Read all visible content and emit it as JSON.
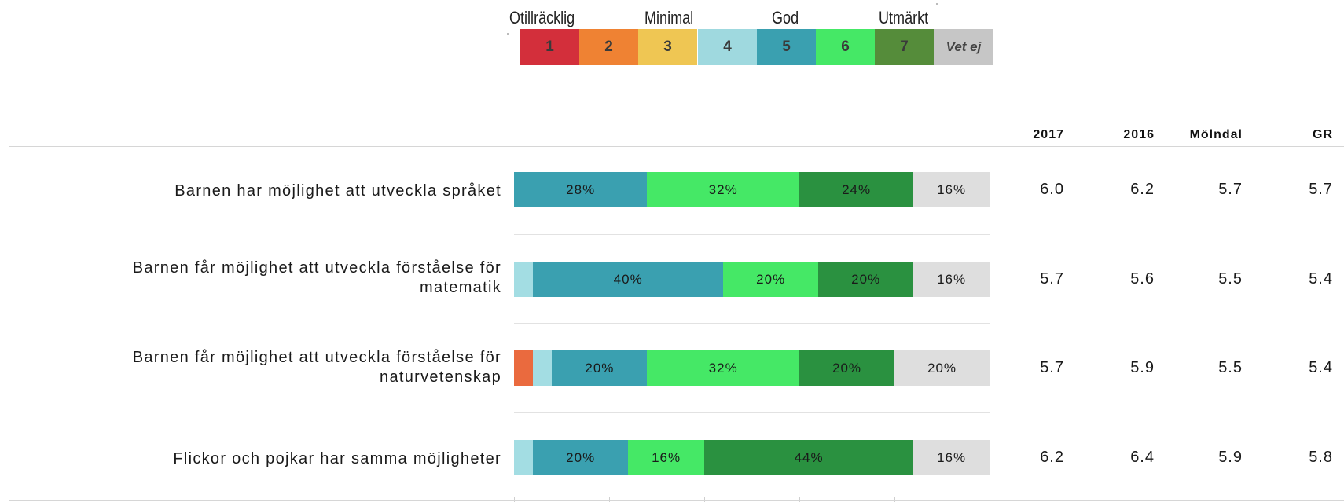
{
  "legend": {
    "top_labels": [
      "Otillräcklig",
      "Minimal",
      "God",
      "Utmärkt"
    ],
    "cells": [
      {
        "label": "1",
        "color": "#d32f3b"
      },
      {
        "label": "2",
        "color": "#ef8233"
      },
      {
        "label": "3",
        "color": "#efc653"
      },
      {
        "label": "4",
        "color": "#9fd9df"
      },
      {
        "label": "5",
        "color": "#3aa0b0"
      },
      {
        "label": "6",
        "color": "#45e866"
      },
      {
        "label": "7",
        "color": "#558c3a"
      },
      {
        "label": "Vet ej",
        "color": "#c6c6c6"
      }
    ]
  },
  "columns": [
    "2017",
    "2016",
    "Mölndal",
    "GR"
  ],
  "chart_data": {
    "type": "bar",
    "stacked": true,
    "orientation": "horizontal",
    "unit": "%",
    "categories": [
      "Barnen har möjlighet att utveckla språket",
      "Barnen får möjlighet att utveckla förståelse för matematik",
      "Barnen får möjlighet att utveckla förståelse för naturvetenskap",
      "Flickor och pojkar har samma möjligheter"
    ],
    "series": [
      {
        "name": "1",
        "color": "#d32f3b",
        "values": [
          0,
          0,
          0,
          0
        ]
      },
      {
        "name": "2",
        "color": "#ea6a3e",
        "values": [
          0,
          0,
          4,
          0
        ]
      },
      {
        "name": "3",
        "color": "#efc653",
        "values": [
          0,
          0,
          0,
          0
        ]
      },
      {
        "name": "4",
        "color": "#a3dde3",
        "values": [
          0,
          4,
          4,
          4
        ]
      },
      {
        "name": "5",
        "color": "#3aa0b0",
        "values": [
          28,
          40,
          20,
          20
        ]
      },
      {
        "name": "6",
        "color": "#45e866",
        "values": [
          32,
          20,
          32,
          16
        ]
      },
      {
        "name": "7",
        "color": "#2a9140",
        "values": [
          24,
          20,
          20,
          44
        ]
      },
      {
        "name": "Vet ej",
        "color": "#dedede",
        "values": [
          16,
          16,
          20,
          16
        ]
      }
    ],
    "labels": [
      [
        "",
        "",
        "",
        "",
        "28%",
        "32%",
        "24%",
        "16%"
      ],
      [
        "",
        "",
        "",
        "",
        "40%",
        "20%",
        "20%",
        "16%"
      ],
      [
        "",
        "",
        "",
        "",
        "20%",
        "32%",
        "20%",
        "20%"
      ],
      [
        "",
        "",
        "",
        "",
        "20%",
        "16%",
        "44%",
        "16%"
      ]
    ],
    "xlim": [
      0,
      100
    ]
  },
  "rows": [
    {
      "label_lines": [
        "Barnen har möjlighet att utveckla språket"
      ],
      "values": [
        "6.0",
        "6.2",
        "5.7",
        "5.7"
      ]
    },
    {
      "label_lines": [
        "Barnen får möjlighet att utveckla förståelse för",
        "matematik"
      ],
      "values": [
        "5.7",
        "5.6",
        "5.5",
        "5.4"
      ]
    },
    {
      "label_lines": [
        "Barnen får möjlighet att utveckla förståelse för",
        "naturvetenskap"
      ],
      "values": [
        "5.7",
        "5.9",
        "5.5",
        "5.4"
      ]
    },
    {
      "label_lines": [
        "Flickor och pojkar har samma möjligheter"
      ],
      "values": [
        "6.2",
        "6.4",
        "5.9",
        "5.8"
      ]
    }
  ]
}
